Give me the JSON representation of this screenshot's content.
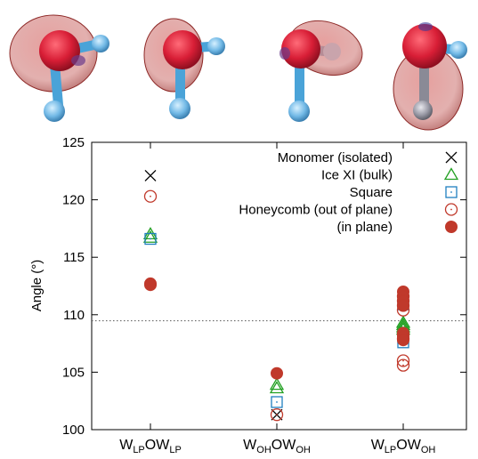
{
  "chart_data": {
    "type": "scatter",
    "ylabel": "Angle (°)",
    "ylim": [
      100,
      125
    ],
    "yticks": [
      100,
      105,
      110,
      115,
      120,
      125
    ],
    "categories": [
      {
        "base": "W",
        "s1": "LP",
        "mid": "OW",
        "s2": "LP"
      },
      {
        "base": "W",
        "s1": "OH",
        "mid": "OW",
        "s2": "OH"
      },
      {
        "base": "W",
        "s1": "LP",
        "mid": "OW",
        "s2": "OH"
      }
    ],
    "reference_line": {
      "y": 109.47,
      "style": "dotted"
    },
    "legend_position": "top-right",
    "series": [
      {
        "name": "Monomer (isolated)",
        "marker": "cross",
        "color": "#000000",
        "points": [
          {
            "cat": 0,
            "y": 122.1
          },
          {
            "cat": 1,
            "y": 101.3
          }
        ]
      },
      {
        "name": "Ice XI (bulk)",
        "marker": "triangle",
        "color": "#22a022",
        "points": [
          {
            "cat": 0,
            "y": 117.0
          },
          {
            "cat": 0,
            "y": 116.7
          },
          {
            "cat": 1,
            "y": 103.9
          },
          {
            "cat": 1,
            "y": 103.6
          },
          {
            "cat": 2,
            "y": 109.3
          },
          {
            "cat": 2,
            "y": 109.1
          },
          {
            "cat": 2,
            "y": 108.9
          },
          {
            "cat": 2,
            "y": 108.7
          }
        ]
      },
      {
        "name": "Square",
        "marker": "square",
        "color": "#1f7fbf",
        "points": [
          {
            "cat": 0,
            "y": 116.6
          },
          {
            "cat": 1,
            "y": 102.4
          },
          {
            "cat": 2,
            "y": 110.9
          },
          {
            "cat": 2,
            "y": 108.0
          },
          {
            "cat": 2,
            "y": 107.6
          }
        ]
      },
      {
        "name": "Honeycomb (out of plane)",
        "marker": "circle-open",
        "color": "#c0392b",
        "points": [
          {
            "cat": 0,
            "y": 120.3
          },
          {
            "cat": 1,
            "y": 101.3
          },
          {
            "cat": 2,
            "y": 111.6
          },
          {
            "cat": 2,
            "y": 111.2
          },
          {
            "cat": 2,
            "y": 110.8
          },
          {
            "cat": 2,
            "y": 110.4
          },
          {
            "cat": 2,
            "y": 108.3
          },
          {
            "cat": 2,
            "y": 107.9
          },
          {
            "cat": 2,
            "y": 106.0
          },
          {
            "cat": 2,
            "y": 105.6
          }
        ]
      },
      {
        "name": "(in plane)",
        "marker": "circle-filled",
        "color": "#c0392b",
        "points": [
          {
            "cat": 0,
            "y": 112.7
          },
          {
            "cat": 0,
            "y": 112.6
          },
          {
            "cat": 1,
            "y": 104.9
          },
          {
            "cat": 2,
            "y": 112.0
          },
          {
            "cat": 2,
            "y": 111.6
          },
          {
            "cat": 2,
            "y": 111.2
          },
          {
            "cat": 2,
            "y": 110.8
          },
          {
            "cat": 2,
            "y": 108.4
          },
          {
            "cat": 2,
            "y": 108.1
          },
          {
            "cat": 2,
            "y": 107.8
          }
        ]
      }
    ]
  }
}
